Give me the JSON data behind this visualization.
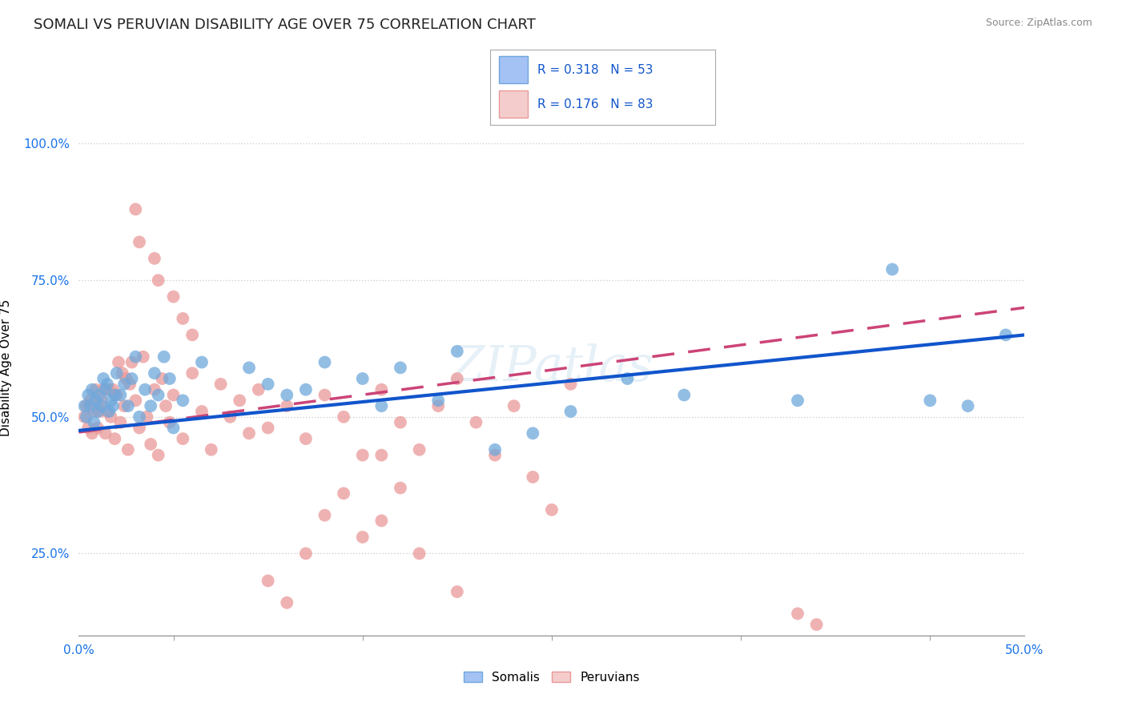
{
  "title": "SOMALI VS PERUVIAN DISABILITY AGE OVER 75 CORRELATION CHART",
  "source_text": "Source: ZipAtlas.com",
  "ylabel": "Disability Age Over 75",
  "xlim": [
    0.0,
    0.5
  ],
  "ylim": [
    0.1,
    1.08
  ],
  "xticks": [
    0.0,
    0.1,
    0.2,
    0.3,
    0.4,
    0.5
  ],
  "xticklabels": [
    "0.0%",
    "",
    "",
    "",
    "",
    "50.0%"
  ],
  "yticks": [
    0.25,
    0.5,
    0.75,
    1.0
  ],
  "yticklabels": [
    "25.0%",
    "50.0%",
    "75.0%",
    "100.0%"
  ],
  "somali_color": "#6fa8dc",
  "peruvian_color": "#ea9999",
  "somali_fill_legend": "#a4c2f4",
  "peruvian_fill_legend": "#f4cccc",
  "line_blue": "#1155cc",
  "line_pink": "#cc4477",
  "tick_color": "#1a73e8",
  "watermark": "ZIPatlas",
  "somali_points_x": [
    0.003,
    0.004,
    0.005,
    0.006,
    0.007,
    0.008,
    0.009,
    0.01,
    0.011,
    0.012,
    0.013,
    0.014,
    0.015,
    0.016,
    0.017,
    0.018,
    0.019,
    0.02,
    0.022,
    0.024,
    0.026,
    0.028,
    0.03,
    0.032,
    0.035,
    0.038,
    0.04,
    0.042,
    0.045,
    0.048,
    0.05,
    0.055,
    0.065,
    0.09,
    0.1,
    0.11,
    0.12,
    0.13,
    0.15,
    0.16,
    0.17,
    0.19,
    0.2,
    0.22,
    0.24,
    0.26,
    0.29,
    0.32,
    0.38,
    0.43,
    0.45,
    0.47,
    0.49
  ],
  "somali_points_y": [
    0.52,
    0.5,
    0.54,
    0.52,
    0.55,
    0.49,
    0.53,
    0.51,
    0.54,
    0.52,
    0.57,
    0.55,
    0.56,
    0.51,
    0.53,
    0.52,
    0.54,
    0.58,
    0.54,
    0.56,
    0.52,
    0.57,
    0.61,
    0.5,
    0.55,
    0.52,
    0.58,
    0.54,
    0.61,
    0.57,
    0.48,
    0.53,
    0.6,
    0.59,
    0.56,
    0.54,
    0.55,
    0.6,
    0.57,
    0.52,
    0.59,
    0.53,
    0.62,
    0.44,
    0.47,
    0.51,
    0.57,
    0.54,
    0.53,
    0.77,
    0.53,
    0.52,
    0.65
  ],
  "peruvian_points_x": [
    0.003,
    0.004,
    0.005,
    0.006,
    0.007,
    0.008,
    0.009,
    0.01,
    0.011,
    0.012,
    0.013,
    0.014,
    0.015,
    0.016,
    0.017,
    0.018,
    0.019,
    0.02,
    0.021,
    0.022,
    0.023,
    0.024,
    0.025,
    0.026,
    0.027,
    0.028,
    0.03,
    0.032,
    0.034,
    0.036,
    0.038,
    0.04,
    0.042,
    0.044,
    0.046,
    0.048,
    0.05,
    0.055,
    0.06,
    0.065,
    0.07,
    0.075,
    0.08,
    0.085,
    0.09,
    0.095,
    0.1,
    0.11,
    0.12,
    0.13,
    0.14,
    0.15,
    0.16,
    0.17,
    0.18,
    0.19,
    0.2,
    0.21,
    0.22,
    0.23,
    0.24,
    0.25,
    0.03,
    0.032,
    0.04,
    0.042,
    0.05,
    0.055,
    0.06,
    0.1,
    0.11,
    0.12,
    0.13,
    0.14,
    0.15,
    0.16,
    0.26,
    0.38,
    0.39,
    0.16,
    0.17,
    0.18,
    0.2
  ],
  "peruvian_points_y": [
    0.5,
    0.52,
    0.48,
    0.53,
    0.47,
    0.51,
    0.55,
    0.48,
    0.51,
    0.53,
    0.55,
    0.47,
    0.51,
    0.55,
    0.5,
    0.55,
    0.46,
    0.54,
    0.6,
    0.49,
    0.58,
    0.52,
    0.57,
    0.44,
    0.56,
    0.6,
    0.53,
    0.48,
    0.61,
    0.5,
    0.45,
    0.55,
    0.43,
    0.57,
    0.52,
    0.49,
    0.54,
    0.46,
    0.58,
    0.51,
    0.44,
    0.56,
    0.5,
    0.53,
    0.47,
    0.55,
    0.48,
    0.52,
    0.46,
    0.54,
    0.5,
    0.43,
    0.55,
    0.49,
    0.44,
    0.52,
    0.57,
    0.49,
    0.43,
    0.52,
    0.39,
    0.33,
    0.88,
    0.82,
    0.79,
    0.75,
    0.72,
    0.68,
    0.65,
    0.2,
    0.16,
    0.25,
    0.32,
    0.36,
    0.28,
    0.31,
    0.56,
    0.14,
    0.12,
    0.43,
    0.37,
    0.25,
    0.18
  ]
}
